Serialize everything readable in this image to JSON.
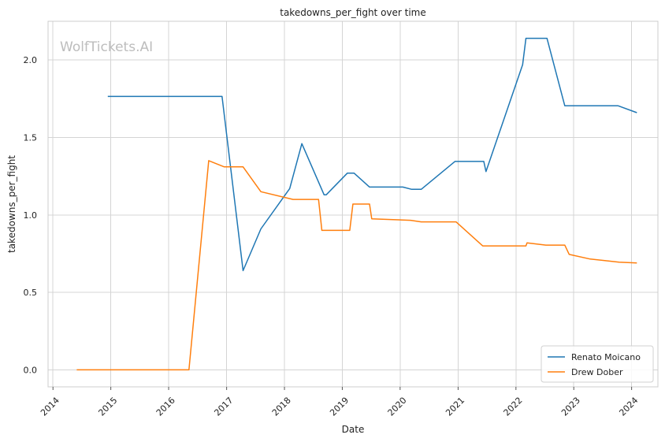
{
  "chart_data": {
    "type": "line",
    "title": "takedowns_per_fight over time",
    "xlabel": "Date",
    "ylabel": "takedowns_per_fight",
    "watermark": "WolfTickets.AI",
    "x_ticks": [
      "2014",
      "2015",
      "2016",
      "2017",
      "2018",
      "2019",
      "2020",
      "2021",
      "2022",
      "2023",
      "2024"
    ],
    "y_ticks": [
      "0.0",
      "0.5",
      "1.0",
      "1.5",
      "2.0"
    ],
    "xlim": [
      "2013-12-01",
      "2024-06-15"
    ],
    "ylim": [
      -0.11,
      2.25
    ],
    "grid": true,
    "legend_position": "lower-right",
    "series": [
      {
        "name": "Renato Moicano",
        "color": "#1f77b4",
        "points": [
          [
            "2014-12-13",
            1.765
          ],
          [
            "2016-12-03",
            1.765
          ],
          [
            "2017-04-15",
            0.64
          ],
          [
            "2017-08-05",
            0.91
          ],
          [
            "2018-02-03",
            1.17
          ],
          [
            "2018-04-21",
            1.46
          ],
          [
            "2018-09-08",
            1.13
          ],
          [
            "2018-09-22",
            1.13
          ],
          [
            "2019-02-02",
            1.27
          ],
          [
            "2019-03-16",
            1.27
          ],
          [
            "2019-06-22",
            1.18
          ],
          [
            "2020-01-18",
            1.18
          ],
          [
            "2020-03-14",
            1.165
          ],
          [
            "2020-05-13",
            1.165
          ],
          [
            "2020-12-12",
            1.345
          ],
          [
            "2021-06-12",
            1.345
          ],
          [
            "2021-06-26",
            1.28
          ],
          [
            "2022-02-12",
            1.97
          ],
          [
            "2022-03-05",
            2.14
          ],
          [
            "2022-07-16",
            2.14
          ],
          [
            "2022-11-05",
            1.705
          ],
          [
            "2023-10-07",
            1.705
          ],
          [
            "2024-02-03",
            1.66
          ]
        ]
      },
      {
        "name": "Drew Dober",
        "color": "#ff7f0e",
        "points": [
          [
            "2014-05-31",
            0.0
          ],
          [
            "2016-05-08",
            0.0
          ],
          [
            "2016-09-10",
            1.35
          ],
          [
            "2016-12-17",
            1.31
          ],
          [
            "2017-04-15",
            1.31
          ],
          [
            "2017-08-05",
            1.15
          ],
          [
            "2018-02-24",
            1.1
          ],
          [
            "2018-08-04",
            1.1
          ],
          [
            "2018-08-25",
            0.9
          ],
          [
            "2019-02-17",
            0.9
          ],
          [
            "2019-03-09",
            1.07
          ],
          [
            "2019-06-22",
            1.07
          ],
          [
            "2019-07-06",
            0.975
          ],
          [
            "2020-03-07",
            0.965
          ],
          [
            "2020-05-13",
            0.955
          ],
          [
            "2020-12-19",
            0.955
          ],
          [
            "2021-06-05",
            0.8
          ],
          [
            "2022-03-05",
            0.8
          ],
          [
            "2022-03-12",
            0.82
          ],
          [
            "2022-07-09",
            0.805
          ],
          [
            "2022-11-05",
            0.805
          ],
          [
            "2022-12-03",
            0.745
          ],
          [
            "2023-04-15",
            0.715
          ],
          [
            "2023-10-14",
            0.695
          ],
          [
            "2024-02-03",
            0.69
          ]
        ]
      }
    ]
  }
}
